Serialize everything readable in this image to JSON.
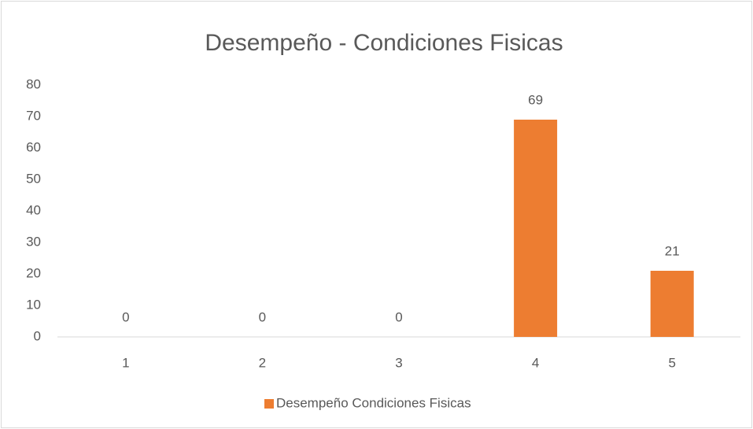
{
  "chart_data": {
    "type": "bar",
    "title": "Desempeño - Condiciones Fisicas",
    "categories": [
      "1",
      "2",
      "3",
      "4",
      "5"
    ],
    "series": [
      {
        "name": "Desempeño Condiciones Fisicas",
        "color": "#ed7d31",
        "values": [
          0,
          0,
          0,
          69,
          21
        ]
      }
    ],
    "ylim": [
      0,
      80
    ],
    "yticks": [
      0,
      10,
      20,
      30,
      40,
      50,
      60,
      70,
      80
    ],
    "grid": false,
    "legend": "bottom"
  }
}
